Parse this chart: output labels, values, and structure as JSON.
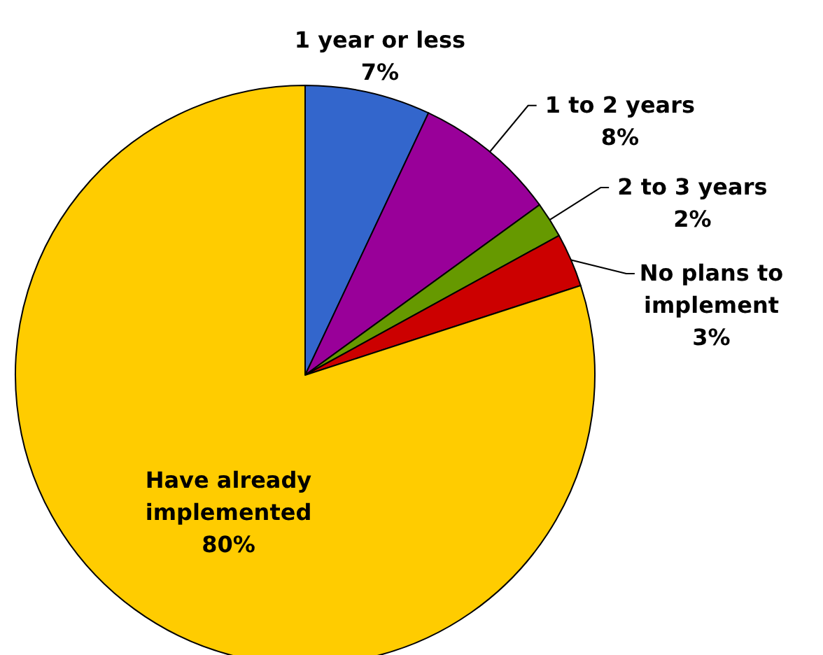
{
  "chart_data": {
    "type": "pie",
    "categories": [
      "1 year or less",
      "1 to 2 years",
      "2 to 3 years",
      "No plans to implement",
      "Have already implemented"
    ],
    "values": [
      7,
      8,
      2,
      3,
      80
    ],
    "value_labels": [
      "7%",
      "8%",
      "2%",
      "3%",
      "80%"
    ],
    "colors": [
      "#3366cc",
      "#990099",
      "#669900",
      "#cc0000",
      "#ffcc00"
    ]
  }
}
